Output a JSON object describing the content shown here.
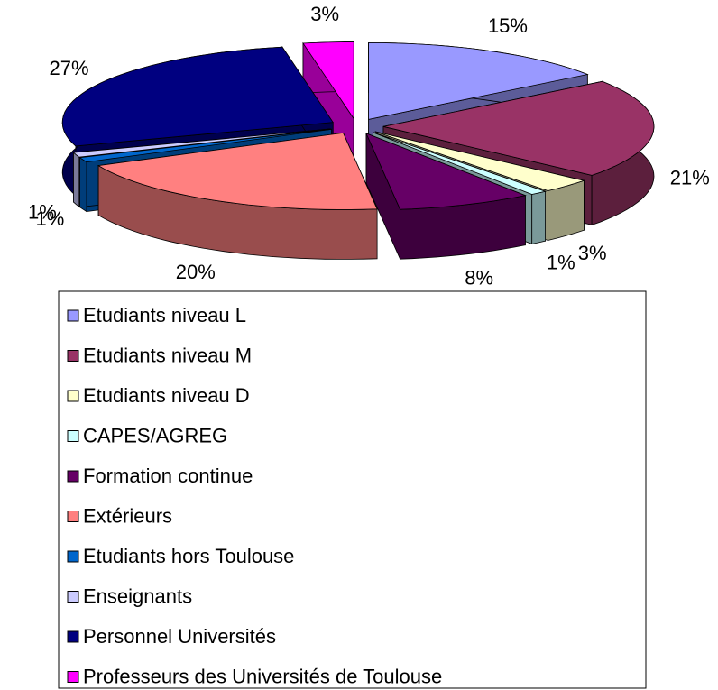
{
  "chart_data": {
    "type": "pie3d",
    "categories": [
      "Etudiants niveau L",
      "Etudiants niveau M",
      "Etudiants niveau D",
      "CAPES/AGREG",
      "Formation continue",
      "Extérieurs",
      "Etudiants hors Toulouse",
      "Enseignants",
      "Personnel Universités",
      "Professeurs des Universités de Toulouse"
    ],
    "values": [
      15,
      21,
      3,
      1,
      8,
      20,
      1,
      1,
      27,
      3
    ],
    "value_labels": [
      "15%",
      "21%",
      "3%",
      "1%",
      "8%",
      "20%",
      "1%",
      "1%",
      "27%",
      "3%"
    ],
    "colors": [
      "#9999ff",
      "#993366",
      "#ffffcc",
      "#ccffff",
      "#660066",
      "#ff8080",
      "#0066cc",
      "#ccccff",
      "#000080",
      "#ff00ff"
    ],
    "legend": "bottom"
  }
}
